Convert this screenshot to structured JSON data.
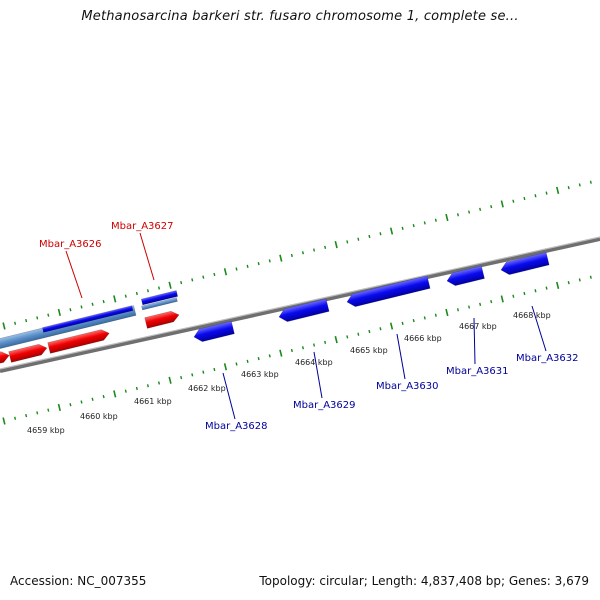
{
  "title": "Methanosarcina barkeri str. fusaro chromosome 1, complete se...",
  "footer": {
    "accession": "Accession: NC_007355",
    "summary": "Topology: circular; Length: 4,837,408 bp; Genes: 3,679"
  },
  "colors": {
    "forward_gene": "#e00000",
    "reverse_gene": "#0000e0",
    "forward_label": "#cc0000",
    "reverse_label": "#000099",
    "tick": "#1a8a1a",
    "backbone": "#8a8a8a",
    "light_blue": "#5b8fc8"
  },
  "tick_labels": [
    "4659 kbp",
    "4660 kbp",
    "4661 kbp",
    "4662 kbp",
    "4663 kbp",
    "4664 kbp",
    "4665 kbp",
    "4666 kbp",
    "4667 kbp",
    "4668 kbp"
  ],
  "gene_labels": [
    {
      "name": "Mbar_A3626",
      "strand": "forward"
    },
    {
      "name": "Mbar_A3627",
      "strand": "forward"
    },
    {
      "name": "Mbar_A3628",
      "strand": "reverse"
    },
    {
      "name": "Mbar_A3629",
      "strand": "reverse"
    },
    {
      "name": "Mbar_A3630",
      "strand": "reverse"
    },
    {
      "name": "Mbar_A3631",
      "strand": "reverse"
    },
    {
      "name": "Mbar_A3632",
      "strand": "reverse"
    }
  ]
}
